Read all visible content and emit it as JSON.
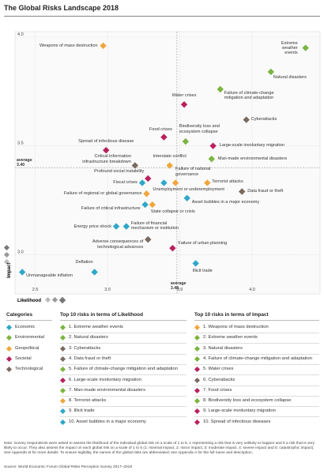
{
  "chart_data": {
    "type": "scatter",
    "title": "The Global Risks Landscape 2018",
    "x_label": "Likelihood",
    "y_label": "Impact",
    "legend_title": "Categories",
    "xlim": [
      2.36,
      4.47
    ],
    "ylim": [
      2.82,
      4.025
    ],
    "xticks": [
      2.5,
      {
        "value": 3,
        "label": "3.0"
      },
      3.5,
      {
        "value": 4,
        "label": "4.0"
      }
    ],
    "yticks": [
      {
        "value": 3,
        "label": "3.0"
      },
      3.5,
      {
        "value": 4,
        "label": "4.0"
      }
    ],
    "average_label": "average",
    "x_average": 3.48,
    "y_average": {
      "value": 3.4,
      "label": "3.40"
    },
    "series": [
      {
        "name": "Economic",
        "color": "#2ea7c9",
        "labels": [
          "Unemployment or underemployment",
          "Fiscal crises",
          "Asset bubbles in a major economy",
          "Failure of critical infrastructure",
          "Energy price shock",
          "Failure of financial\nmechanism or institution",
          "Illicit trade",
          "Deflation",
          "Unmanageable inflation"
        ],
        "x": [
          3.39,
          3.24,
          3.55,
          3.26,
          3.06,
          3.13,
          3.61,
          2.91,
          2.41
        ],
        "values": [
          3.33,
          3.33,
          3.26,
          3.23,
          3.13,
          3.13,
          2.96,
          2.92,
          2.92
        ]
      },
      {
        "name": "Environmental",
        "color": "#7bb540",
        "labels": [
          "Extreme\nweather events",
          "Natural disasters",
          "Failure of climate-change\nmitigation and adaptation",
          "Biodiversity loss and\necosystem collapse",
          "Man-made environmental disasters"
        ],
        "x": [
          4.37,
          4.13,
          3.78,
          3.54,
          3.72
        ],
        "values": [
          3.95,
          3.84,
          3.76,
          3.52,
          3.44
        ]
      },
      {
        "name": "Geopolitical",
        "color": "#f0a63e",
        "labels": [
          "Weapons of mass destruction",
          "Interstate conflict",
          "Failure of national\ngovernance",
          "Terrorist attacks",
          "Failure of regional or global governance",
          "State collapse or crisis"
        ],
        "x": [
          2.97,
          3.43,
          3.47,
          3.69,
          3.27,
          3.31
        ],
        "values": [
          3.96,
          3.41,
          3.33,
          3.33,
          3.28,
          3.23
        ]
      },
      {
        "name": "Societal",
        "color": "#b8215d",
        "labels": [
          "Water crises",
          "Food crises",
          "Spread of infectious disease",
          "Large-scale involuntary migration",
          "Profound social instability",
          "Failure of urban planning"
        ],
        "x": [
          3.53,
          3.39,
          2.99,
          3.73,
          3.28,
          3.45
        ],
        "values": [
          3.69,
          3.54,
          3.48,
          3.5,
          3.35,
          3.03
        ]
      },
      {
        "name": "Technological",
        "color": "#7a6a5f",
        "labels": [
          "Cyberattacks",
          "Critical information\ninfrastructure breakdown",
          "Data fraud or theft",
          "Adverse consequences of\ntechnological advances"
        ],
        "x": [
          3.96,
          3.19,
          3.93,
          3.28
        ],
        "values": [
          3.62,
          3.41,
          3.29,
          3.07
        ]
      }
    ]
  },
  "top10": [
    {
      "title": "Top 10 risks in terms of Likelihood",
      "items": [
        {
          "label": "1. Extreme weather events",
          "color": "#7bb540"
        },
        {
          "label": "2. Natural disasters",
          "color": "#7bb540"
        },
        {
          "label": "3. Cyberattacks",
          "color": "#7a6a5f"
        },
        {
          "label": "4. Data fraud or theft",
          "color": "#7a6a5f"
        },
        {
          "label": "5. Failure of climate-change mitigation and adaptation",
          "color": "#7bb540"
        },
        {
          "label": "6. Large-scale involuntary migration",
          "color": "#b8215d"
        },
        {
          "label": "7. Man-made environmental disasters",
          "color": "#7bb540"
        },
        {
          "label": "8. Terrorist attacks",
          "color": "#f0a63e"
        },
        {
          "label": "9. Illicit trade",
          "color": "#2ea7c9"
        },
        {
          "label": "10. Asset bubbles in a major economy",
          "color": "#2ea7c9"
        }
      ]
    },
    {
      "title": "Top 10 risks in terms of Impact",
      "items": [
        {
          "label": "1. Weapons of mass destruction",
          "color": "#f0a63e"
        },
        {
          "label": "2. Extreme weather events",
          "color": "#7bb540"
        },
        {
          "label": "3. Natural disasters",
          "color": "#7bb540"
        },
        {
          "label": "4. Failure of climate-change mitigation and adaptation",
          "color": "#7bb540"
        },
        {
          "label": "5. Water crises",
          "color": "#b8215d"
        },
        {
          "label": "6. Cyberattacks",
          "color": "#7a6a5f"
        },
        {
          "label": "7. Food crises",
          "color": "#b8215d"
        },
        {
          "label": "8. Biodiversity loss and ecosystem collapse",
          "color": "#7bb540"
        },
        {
          "label": "9. Large-scale involuntary migration",
          "color": "#b8215d"
        },
        {
          "label": "10. Spread of infectious diseases",
          "color": "#b8215d"
        }
      ]
    }
  ],
  "note": "Note: Survey respondents were asked to assess the likelihood of the individual global risk on a scale of 1 to 5, 1 representing a risk that is very unlikely to happen and 5 a risk that is very likely to occur. They also assess the impact on each global risk on a scale of 1 to 5 (1: minimal impact, 2: minor impact, 3: moderate impact, 4: severe impact and 5: catastrophic impact). See Appendix B for more details. To ensure legibility, the names of the global risks are abbreviated; see Appendix A for the full name and description.",
  "source": "Source: World Economic Forum Global Risks Perception Survey 2017–2018"
}
